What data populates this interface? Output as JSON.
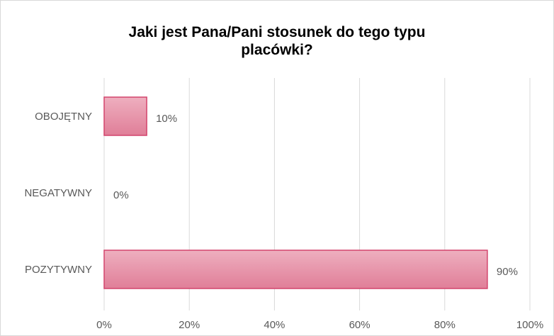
{
  "chart_data": {
    "type": "bar",
    "orientation": "horizontal",
    "title_lines": [
      "Jaki jest Pana/Pani stosunek do tego typu",
      "placówki?"
    ],
    "categories": [
      "OBOJĘTNY",
      "NEGATYWNY",
      "POZYTYWNY"
    ],
    "values": [
      10,
      0,
      90
    ],
    "data_labels": [
      "10%",
      "0%",
      "90%"
    ],
    "x_ticks": [
      "0%",
      "20%",
      "40%",
      "60%",
      "80%",
      "100%"
    ],
    "xlim": [
      0,
      100
    ],
    "grid": true,
    "legend": "none",
    "colors": {
      "bar_fill_top": "#eeafbf",
      "bar_fill_bottom": "#e07e98",
      "bar_border": "#d3456d",
      "gridline": "#d9d9d9",
      "text": "#595959"
    }
  }
}
